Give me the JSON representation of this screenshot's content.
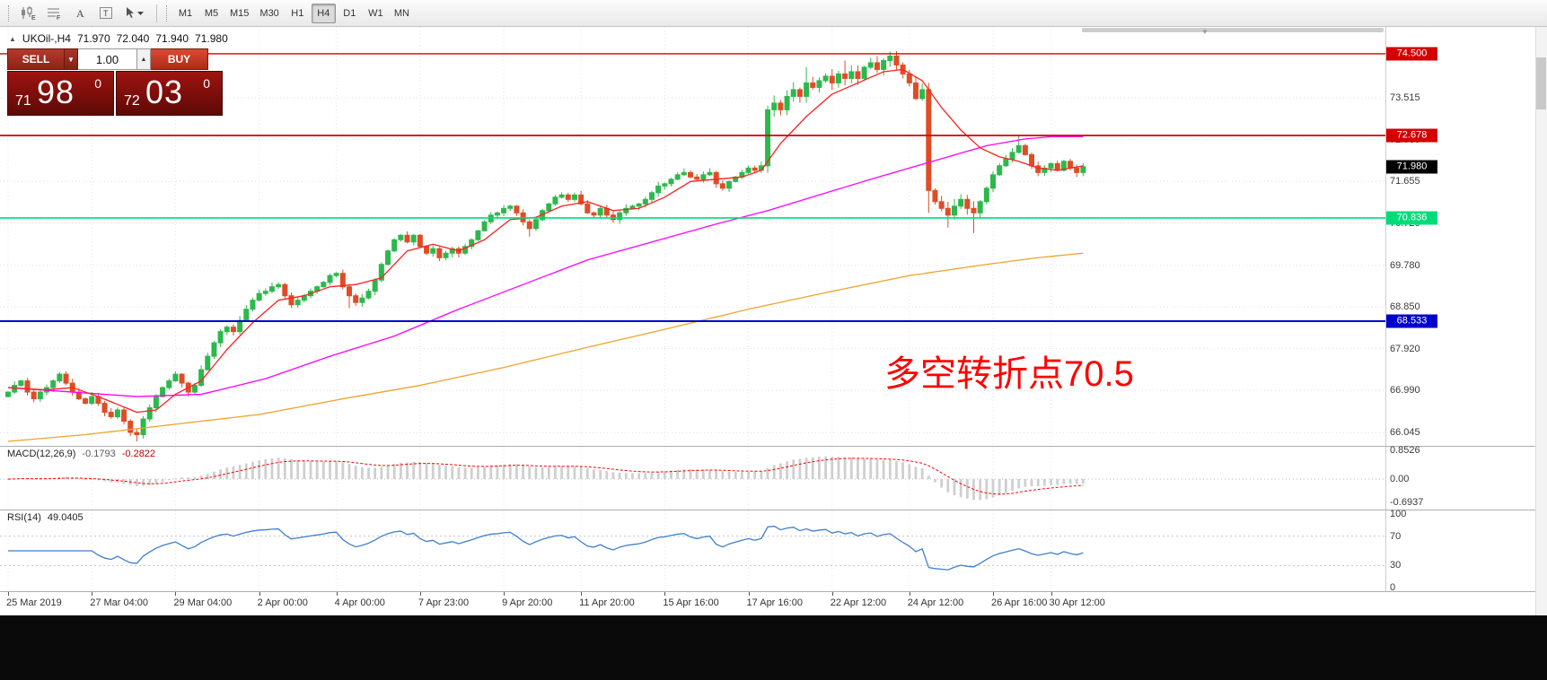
{
  "toolbar": {
    "icons": [
      {
        "kind": "candles",
        "name": "chart-type-icon",
        "glyph": "E"
      },
      {
        "kind": "lines",
        "name": "grid-levels-icon",
        "glyph": "F"
      },
      {
        "kind": "textA",
        "name": "text-tool-icon",
        "glyph": "A"
      },
      {
        "kind": "textT",
        "name": "label-tool-icon",
        "glyph": "T"
      },
      {
        "kind": "cursor",
        "name": "cursor-tool-icon",
        "glyph": "▾"
      }
    ],
    "timeframes": [
      "M1",
      "M5",
      "M15",
      "M30",
      "H1",
      "H4",
      "D1",
      "W1",
      "MN"
    ],
    "active_timeframe": "H4"
  },
  "chart_header": {
    "symbol": "UKOil-,H4",
    "open": "71.970",
    "high": "72.040",
    "low": "71.940",
    "close": "71.980"
  },
  "trade_panel": {
    "sell_label": "SELL",
    "buy_label": "BUY",
    "volume": "1.00",
    "sell_price_small": "71",
    "sell_price_big": "98",
    "sell_price_sup": "0",
    "buy_price_small": "72",
    "buy_price_big": "03",
    "buy_price_sup": "0"
  },
  "annotation": {
    "text": "多空转折点70.5",
    "color": "#ff0000"
  },
  "indicators": {
    "macd": {
      "label": "MACD(12,26,9)",
      "value_main": "-0.1793",
      "value_signal": "-0.2822",
      "axis_max": "0.8526",
      "axis_zero": "0.00",
      "axis_min": "-0.6937"
    },
    "rsi": {
      "label": "RSI(14)",
      "value": "49.0405",
      "axis_labels": [
        100,
        70,
        30,
        0
      ],
      "levels": [
        70,
        30
      ]
    }
  },
  "price_axis": {
    "ticks": [
      73.515,
      72.585,
      71.655,
      70.72,
      69.78,
      68.85,
      67.92,
      66.99,
      66.045
    ],
    "current": {
      "label": "71.980",
      "price": 71.98,
      "bg": "#000000"
    },
    "lines": [
      {
        "price": 74.5,
        "label": "74.500",
        "color": "#d40000",
        "width": 1.4
      },
      {
        "price": 72.678,
        "label": "72.678",
        "color": "#d40000",
        "width": 1.8
      },
      {
        "price": 70.836,
        "label": "70.836",
        "color": "#00dc78",
        "width": 1.6
      },
      {
        "price": 68.533,
        "label": "68.533",
        "color": "#0000cc",
        "width": 2
      }
    ]
  },
  "time_axis": {
    "labels": [
      {
        "text": "25 Mar 2019",
        "i": 0
      },
      {
        "text": "27 Mar 04:00",
        "i": 13
      },
      {
        "text": "29 Mar 04:00",
        "i": 26
      },
      {
        "text": "2 Apr 00:00",
        "i": 39
      },
      {
        "text": "4 Apr 00:00",
        "i": 51
      },
      {
        "text": "7 Apr 23:00",
        "i": 64
      },
      {
        "text": "9 Apr 20:00",
        "i": 77
      },
      {
        "text": "11 Apr 20:00",
        "i": 89
      },
      {
        "text": "15 Apr 16:00",
        "i": 102
      },
      {
        "text": "17 Apr 16:00",
        "i": 115
      },
      {
        "text": "22 Apr 12:00",
        "i": 128
      },
      {
        "text": "24 Apr 12:00",
        "i": 140
      },
      {
        "text": "26 Apr 16:00",
        "i": 153
      },
      {
        "text": "30 Apr 12:00",
        "i": 162
      }
    ]
  },
  "chart_data": {
    "type": "candlestick",
    "symbol": "UKOil-",
    "timeframe": "H4",
    "ylim": [
      65.75,
      75.1
    ],
    "first_open": 66.85,
    "closes": [
      66.95,
      67.1,
      67.2,
      66.95,
      66.8,
      66.95,
      67.05,
      67.2,
      67.35,
      67.15,
      66.95,
      66.8,
      66.7,
      66.85,
      66.7,
      66.5,
      66.4,
      66.55,
      66.3,
      66.05,
      66.0,
      66.35,
      66.6,
      66.85,
      67.05,
      67.2,
      67.35,
      67.15,
      66.95,
      67.1,
      67.45,
      67.75,
      68.05,
      68.3,
      68.4,
      68.3,
      68.55,
      68.8,
      69.0,
      69.15,
      69.2,
      69.3,
      69.35,
      69.1,
      68.9,
      69.0,
      69.1,
      69.2,
      69.3,
      69.4,
      69.55,
      69.6,
      69.3,
      69.1,
      68.95,
      69.05,
      69.2,
      69.45,
      69.8,
      70.1,
      70.35,
      70.45,
      70.3,
      70.45,
      70.2,
      70.05,
      70.15,
      69.95,
      70.05,
      70.15,
      70.05,
      70.2,
      70.35,
      70.55,
      70.75,
      70.9,
      70.95,
      71.05,
      71.1,
      70.95,
      70.75,
      70.6,
      70.8,
      71.0,
      71.15,
      71.3,
      71.35,
      71.25,
      71.35,
      71.15,
      70.95,
      70.9,
      71.05,
      70.9,
      70.8,
      70.95,
      71.05,
      71.1,
      71.15,
      71.25,
      71.4,
      71.55,
      71.6,
      71.7,
      71.8,
      71.85,
      71.75,
      71.7,
      71.8,
      71.85,
      71.6,
      71.5,
      71.65,
      71.75,
      71.85,
      71.95,
      71.9,
      72.0,
      73.25,
      73.4,
      73.25,
      73.55,
      73.7,
      73.55,
      73.85,
      73.75,
      73.9,
      74.0,
      73.85,
      74.05,
      73.95,
      74.1,
      73.95,
      74.2,
      74.3,
      74.15,
      74.35,
      74.45,
      74.25,
      74.05,
      73.85,
      73.5,
      73.7,
      71.45,
      71.2,
      71.05,
      70.9,
      71.1,
      71.25,
      71.05,
      70.95,
      71.2,
      71.5,
      71.8,
      72.0,
      72.15,
      72.3,
      72.45,
      72.25,
      72.0,
      71.85,
      71.95,
      72.05,
      71.9,
      72.1,
      71.95,
      71.85,
      71.98
    ],
    "wick_overrides": {
      "20": {
        "low": 65.85
      },
      "53": {
        "low": 68.82
      },
      "81": {
        "low": 70.42
      },
      "124": {
        "high": 74.2
      },
      "130": {
        "high": 74.35
      },
      "137": {
        "high": 74.55
      },
      "138": {
        "high": 74.56
      },
      "143": {
        "low": 70.95
      },
      "146": {
        "low": 70.62
      },
      "150": {
        "low": 70.5
      },
      "157": {
        "high": 72.66
      }
    },
    "ma_fast_anchors": [
      [
        0,
        67.05
      ],
      [
        6,
        67.0
      ],
      [
        10,
        67.05
      ],
      [
        14,
        66.85
      ],
      [
        20,
        66.5
      ],
      [
        23,
        66.55
      ],
      [
        26,
        66.9
      ],
      [
        30,
        67.2
      ],
      [
        34,
        67.9
      ],
      [
        38,
        68.5
      ],
      [
        42,
        69.0
      ],
      [
        46,
        69.1
      ],
      [
        50,
        69.3
      ],
      [
        54,
        69.35
      ],
      [
        58,
        69.5
      ],
      [
        62,
        70.1
      ],
      [
        66,
        70.25
      ],
      [
        70,
        70.1
      ],
      [
        74,
        70.35
      ],
      [
        78,
        70.8
      ],
      [
        82,
        70.85
      ],
      [
        86,
        71.1
      ],
      [
        90,
        71.2
      ],
      [
        94,
        71.0
      ],
      [
        98,
        71.05
      ],
      [
        102,
        71.3
      ],
      [
        106,
        71.65
      ],
      [
        110,
        71.7
      ],
      [
        114,
        71.75
      ],
      [
        117,
        71.9
      ],
      [
        120,
        72.5
      ],
      [
        124,
        73.1
      ],
      [
        128,
        73.6
      ],
      [
        132,
        73.85
      ],
      [
        136,
        74.1
      ],
      [
        139,
        74.15
      ],
      [
        142,
        73.9
      ],
      [
        145,
        73.3
      ],
      [
        148,
        72.8
      ],
      [
        151,
        72.4
      ],
      [
        154,
        72.2
      ],
      [
        157,
        72.1
      ],
      [
        160,
        71.95
      ],
      [
        163,
        71.9
      ],
      [
        167,
        72.0
      ]
    ],
    "ma_mid_anchors": [
      [
        0,
        67.05
      ],
      [
        10,
        66.95
      ],
      [
        20,
        66.85
      ],
      [
        30,
        66.9
      ],
      [
        40,
        67.25
      ],
      [
        50,
        67.75
      ],
      [
        60,
        68.2
      ],
      [
        70,
        68.8
      ],
      [
        80,
        69.35
      ],
      [
        90,
        69.9
      ],
      [
        100,
        70.3
      ],
      [
        110,
        70.7
      ],
      [
        118,
        71.0
      ],
      [
        126,
        71.35
      ],
      [
        134,
        71.7
      ],
      [
        140,
        71.95
      ],
      [
        146,
        72.2
      ],
      [
        152,
        72.45
      ],
      [
        158,
        72.6
      ],
      [
        162,
        72.65
      ],
      [
        167,
        72.65
      ]
    ],
    "ma_slow_anchors": [
      [
        0,
        65.85
      ],
      [
        12,
        66.0
      ],
      [
        24,
        66.2
      ],
      [
        39,
        66.45
      ],
      [
        52,
        66.8
      ],
      [
        64,
        67.1
      ],
      [
        77,
        67.5
      ],
      [
        90,
        67.95
      ],
      [
        102,
        68.35
      ],
      [
        115,
        68.8
      ],
      [
        128,
        69.2
      ],
      [
        140,
        69.55
      ],
      [
        152,
        69.8
      ],
      [
        160,
        69.95
      ],
      [
        167,
        70.05
      ]
    ],
    "horizontal_lines": [
      74.5,
      72.678,
      70.836,
      68.533
    ],
    "macd_scale": [
      -0.6937,
      0.8526
    ],
    "rsi_scale": [
      0,
      100
    ],
    "colors": {
      "up": "#2db84d",
      "down": "#df4d26",
      "ma_fast": "#ff1f1f",
      "ma_mid": "#ff00ff",
      "ma_slow": "#efa32f",
      "rsi": "#3f7fd0",
      "macd_hist": "#cfcfcf",
      "macd_signal": "#ff0000",
      "grid": "#dedede"
    }
  }
}
